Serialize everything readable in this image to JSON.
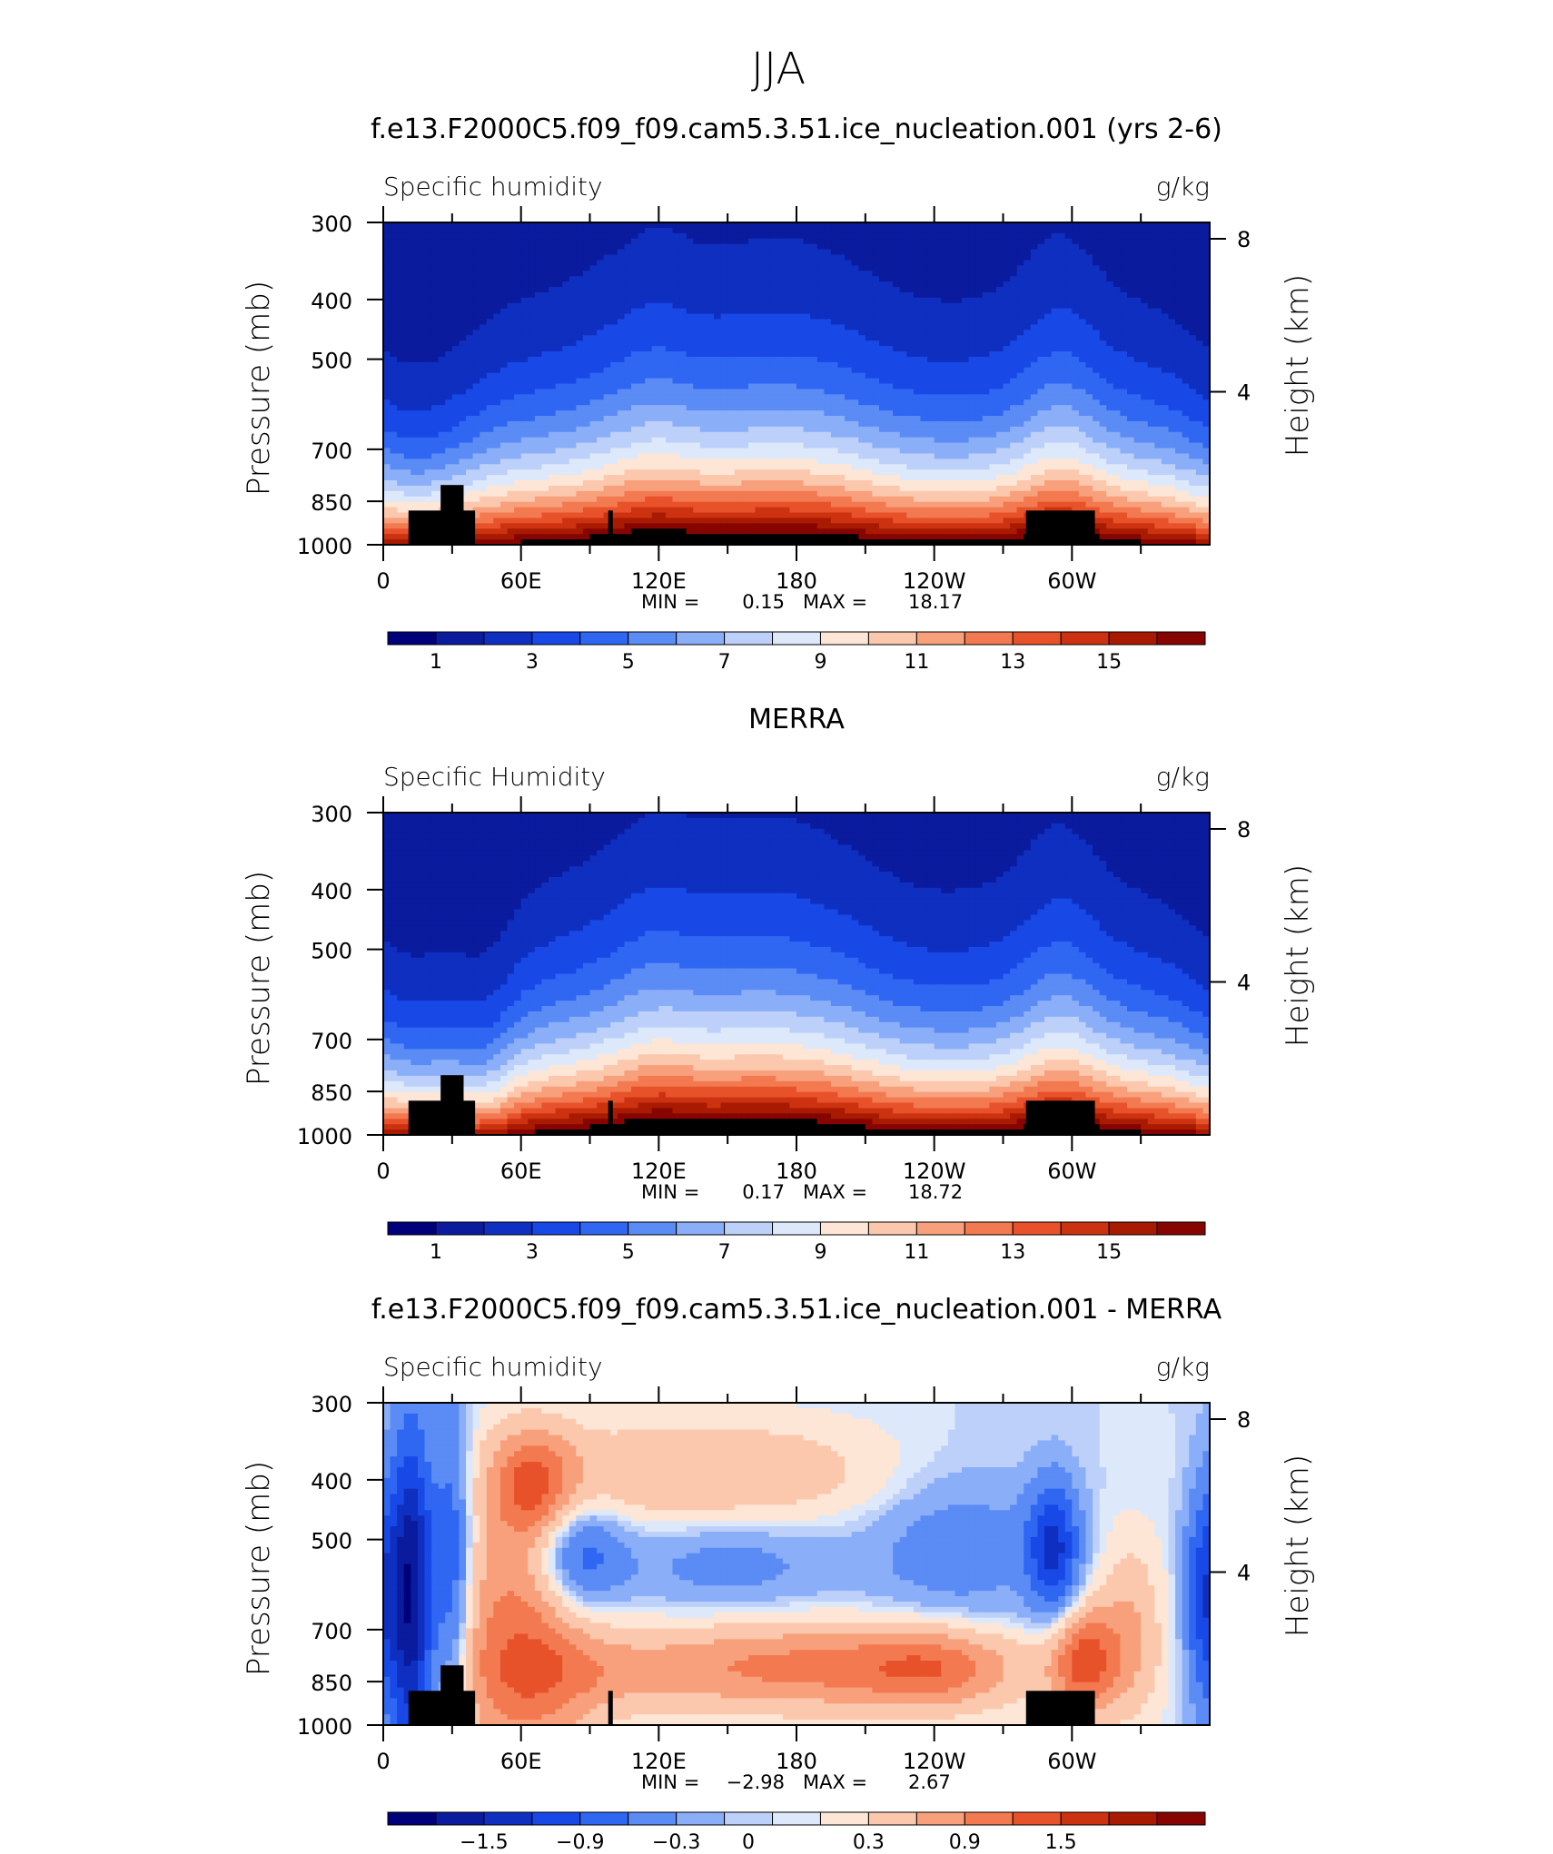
{
  "figure": {
    "main_title": "JJA"
  },
  "x_axis": {
    "ticks": [
      {
        "lon": 0,
        "label": "0"
      },
      {
        "lon": 60,
        "label": "60E"
      },
      {
        "lon": 120,
        "label": "120E"
      },
      {
        "lon": 180,
        "label": "180"
      },
      {
        "lon": 240,
        "label": "120W"
      },
      {
        "lon": 300,
        "label": "60W"
      }
    ],
    "minor_ticks": [
      30,
      90,
      150,
      210,
      270,
      330
    ],
    "range": [
      0,
      360
    ]
  },
  "y_axis": {
    "label": "Pressure (mb)",
    "ticks": [
      {
        "value": 300,
        "label": "300"
      },
      {
        "value": 400,
        "label": "400"
      },
      {
        "value": 500,
        "label": "500"
      },
      {
        "value": 700,
        "label": "700"
      },
      {
        "value": 850,
        "label": "850"
      },
      {
        "value": 1000,
        "label": "1000"
      }
    ],
    "range": [
      1000,
      300
    ]
  },
  "right_axis": {
    "label": "Height (km)",
    "ticks": [
      {
        "km": 8,
        "label": "8"
      },
      {
        "km": 4,
        "label": "4"
      }
    ]
  },
  "panels": [
    {
      "title": "f.e13.F2000C5.f09_f09.cam5.3.51.ice_nucleation.001 (yrs 2-6)",
      "title_bold": false,
      "left_label": "Specific humidity",
      "right_label": "g/kg",
      "min_label": "MIN =",
      "min_value": "0.15",
      "max_label": "MAX =",
      "max_value": "18.17",
      "type": "mean",
      "colorbar_labels": [
        "1",
        "3",
        "5",
        "7",
        "9",
        "11",
        "13",
        "15"
      ]
    },
    {
      "title": "MERRA",
      "title_bold": true,
      "left_label": "Specific Humidity",
      "right_label": "g/kg",
      "min_label": "MIN =",
      "min_value": "0.17",
      "max_label": "MAX =",
      "max_value": "18.72",
      "type": "mean",
      "colorbar_labels": [
        "1",
        "3",
        "5",
        "7",
        "9",
        "11",
        "13",
        "15"
      ]
    },
    {
      "title": "f.e13.F2000C5.f09_f09.cam5.3.51.ice_nucleation.001 - MERRA",
      "title_bold": false,
      "left_label": "Specific humidity",
      "right_label": "g/kg",
      "min_label": "MIN =",
      "min_value": "−2.98",
      "max_label": "MAX =",
      "max_value": "2.67",
      "type": "diff",
      "colorbar_labels": [
        "−1.5",
        "−0.9",
        "−0.3",
        "0",
        "0.3",
        "0.9",
        "1.5"
      ]
    }
  ],
  "chart_data": [
    {
      "type": "heatmap",
      "title": "f.e13.F2000C5.f09_f09.cam5.3.51.ice_nucleation.001 (yrs 2-6)",
      "subtitle_left": "Specific humidity",
      "units": "g/kg",
      "x": "longitude 0-360",
      "y": "pressure 1000-300 mb",
      "min": 0.15,
      "max": 18.17,
      "levels": [
        0,
        1,
        2,
        3,
        4,
        5,
        6,
        7,
        8,
        9,
        10,
        11,
        12,
        13,
        14,
        15,
        16
      ],
      "colors": [
        "#00007a",
        "#0a1b9e",
        "#0f2fc0",
        "#1848e6",
        "#2f66f2",
        "#5b8bf5",
        "#8aaef7",
        "#bcd0fa",
        "#dde8fb",
        "#fde6d6",
        "#fbc8ad",
        "#f8a07c",
        "#f37a50",
        "#e8522b",
        "#cc3210",
        "#a81a02",
        "#860500"
      ]
    },
    {
      "type": "heatmap",
      "title": "MERRA",
      "subtitle_left": "Specific Humidity",
      "units": "g/kg",
      "x": "longitude 0-360",
      "y": "pressure 1000-300 mb",
      "min": 0.17,
      "max": 18.72,
      "levels": [
        0,
        1,
        2,
        3,
        4,
        5,
        6,
        7,
        8,
        9,
        10,
        11,
        12,
        13,
        14,
        15,
        16
      ],
      "colors": [
        "#00007a",
        "#0a1b9e",
        "#0f2fc0",
        "#1848e6",
        "#2f66f2",
        "#5b8bf5",
        "#8aaef7",
        "#bcd0fa",
        "#dde8fb",
        "#fde6d6",
        "#fbc8ad",
        "#f8a07c",
        "#f37a50",
        "#e8522b",
        "#cc3210",
        "#a81a02",
        "#860500"
      ]
    },
    {
      "type": "heatmap",
      "title": "f.e13.F2000C5.f09_f09.cam5.3.51.ice_nucleation.001 - MERRA",
      "subtitle_left": "Specific humidity",
      "units": "g/kg",
      "x": "longitude 0-360",
      "y": "pressure 1000-300 mb",
      "min": -2.98,
      "max": 2.67,
      "levels": [
        -1.8,
        -1.5,
        -1.2,
        -0.9,
        -0.6,
        -0.3,
        -0.1,
        0,
        0.1,
        0.3,
        0.6,
        0.9,
        1.2,
        1.5,
        1.8
      ],
      "colors": [
        "#00007a",
        "#0a1b9e",
        "#0f2fc0",
        "#1848e6",
        "#2f66f2",
        "#5b8bf5",
        "#8aaef7",
        "#bcd0fa",
        "#dde8fb",
        "#fde6d6",
        "#fbc8ad",
        "#f8a07c",
        "#f37a50",
        "#e8522b",
        "#cc3210",
        "#a81a02",
        "#860500"
      ]
    }
  ]
}
